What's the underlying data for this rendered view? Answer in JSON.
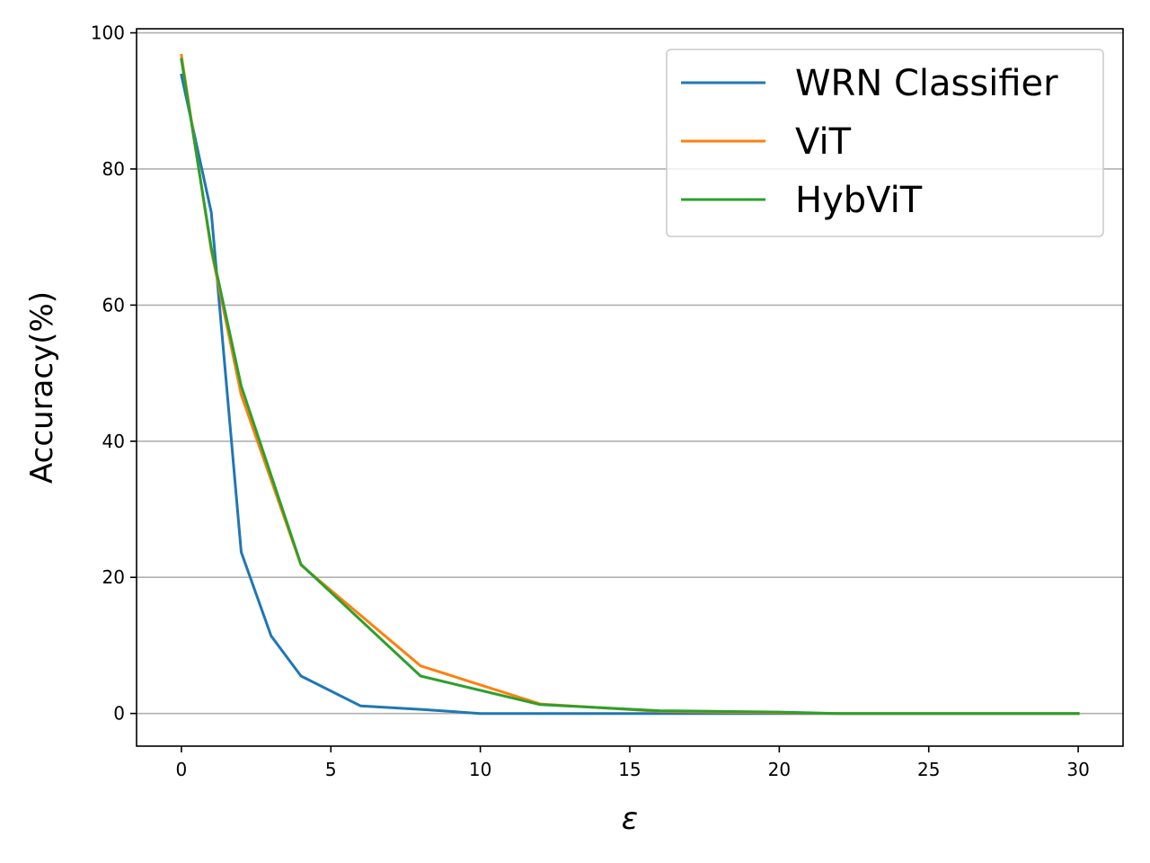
{
  "chart_data": {
    "type": "line",
    "title": "",
    "xlabel": "ε",
    "ylabel": "Accuracy(%)",
    "xlim": [
      -1.5,
      31.5
    ],
    "ylim": [
      -4.8,
      100.6
    ],
    "xticks": [
      0,
      5,
      10,
      15,
      20,
      25,
      30
    ],
    "yticks": [
      0,
      20,
      40,
      60,
      80,
      100
    ],
    "grid": "horizontal",
    "legend_position": "top-right",
    "series": [
      {
        "name": "WRN Classifier",
        "color": "#1f77b4",
        "x": [
          0,
          1,
          2,
          3,
          4,
          6,
          8,
          10,
          12,
          16,
          20,
          22,
          25,
          30
        ],
        "y": [
          93.8,
          73.6,
          23.7,
          11.4,
          5.5,
          1.1,
          0.6,
          0.0,
          0.0,
          0.0,
          0.0,
          0.0,
          0.0,
          0.0
        ]
      },
      {
        "name": "ViT",
        "color": "#ff7f0e",
        "x": [
          0,
          1,
          2,
          4,
          8,
          12,
          16,
          20,
          22,
          30
        ],
        "y": [
          96.7,
          68.0,
          46.8,
          21.8,
          7.0,
          1.4,
          0.3,
          0.1,
          0.0,
          0.0
        ]
      },
      {
        "name": "HybViT",
        "color": "#2ca02c",
        "x": [
          0,
          1,
          2,
          4,
          8,
          12,
          16,
          20,
          22,
          30
        ],
        "y": [
          96.1,
          68.4,
          48.1,
          21.9,
          5.5,
          1.3,
          0.4,
          0.2,
          0.0,
          0.0
        ]
      }
    ]
  }
}
